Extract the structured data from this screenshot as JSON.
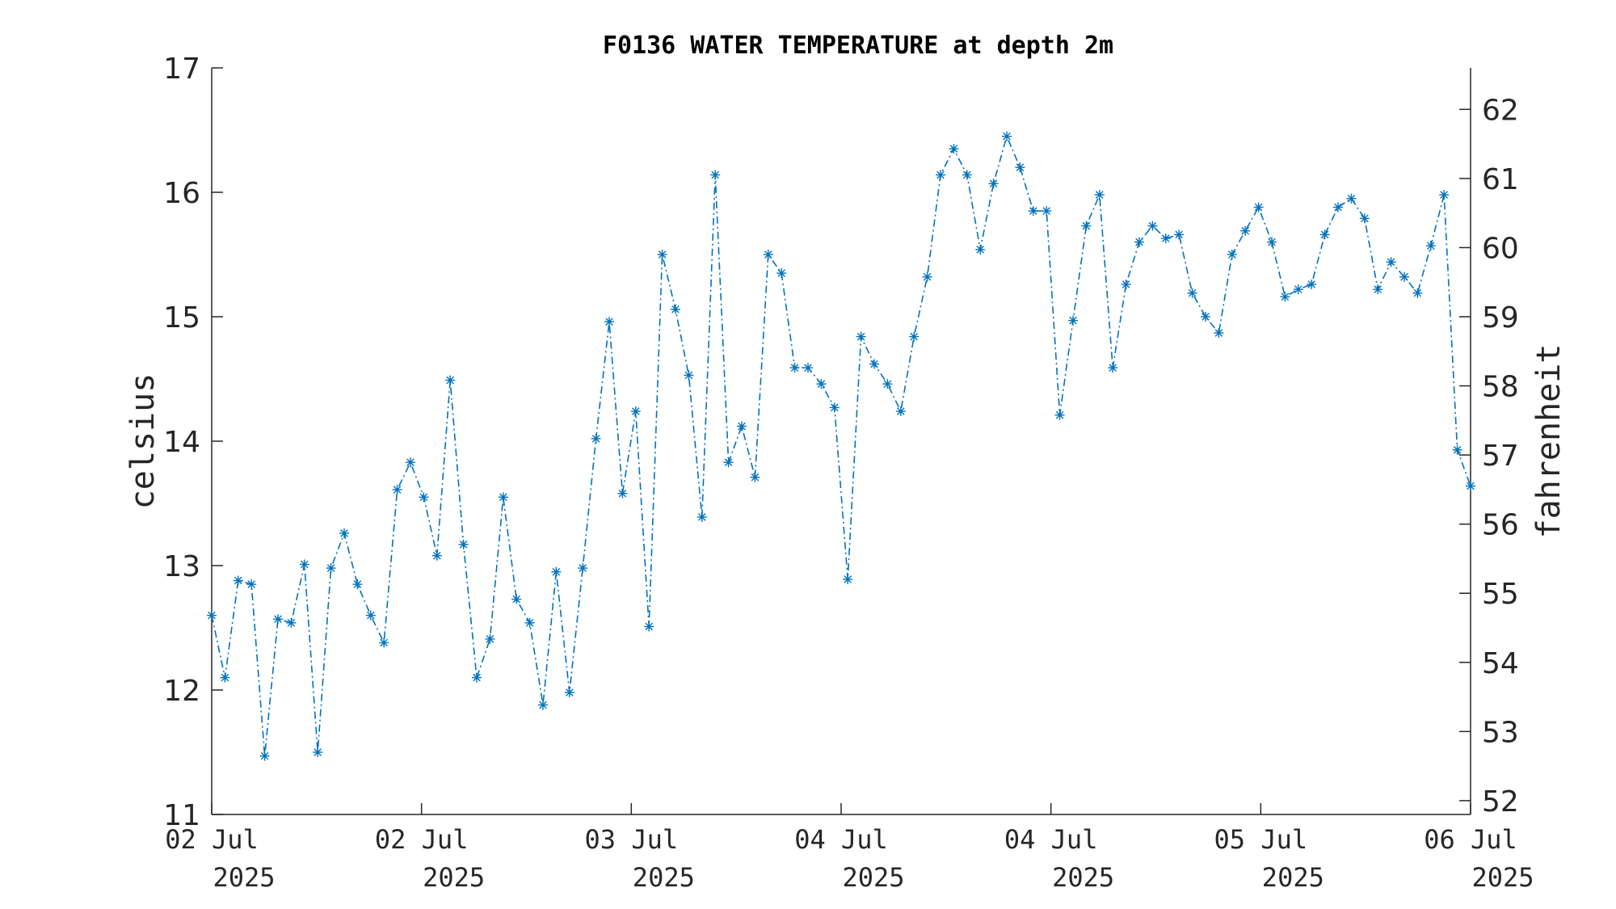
{
  "chart_data": {
    "type": "line",
    "title": "F0136 WATER TEMPERATURE at depth 2m",
    "ylabel": "celsius",
    "ylabel_right": "fahrenheit",
    "ylim": [
      11,
      17
    ],
    "yticks": [
      11,
      12,
      13,
      14,
      15,
      16,
      17
    ],
    "yticks_right": [
      52,
      53,
      54,
      55,
      56,
      57,
      58,
      59,
      60,
      61,
      62
    ],
    "xticks": [
      {
        "line1": "02 Jul",
        "line2": "2025"
      },
      {
        "line1": "02 Jul",
        "line2": "2025"
      },
      {
        "line1": "03 Jul",
        "line2": "2025"
      },
      {
        "line1": "04 Jul",
        "line2": "2025"
      },
      {
        "line1": "04 Jul",
        "line2": "2025"
      },
      {
        "line1": "05 Jul",
        "line2": "2025"
      },
      {
        "line1": "06 Jul",
        "line2": "2025"
      }
    ],
    "grid": false,
    "line_style": "dash-dot",
    "marker": "asterisk",
    "series_color": "#0072BD",
    "series": [
      {
        "values": [
          12.6,
          12.1,
          12.88,
          12.85,
          11.47,
          12.57,
          12.54,
          13.01,
          11.5,
          12.98,
          13.26,
          12.85,
          12.6,
          12.38,
          13.61,
          13.83,
          13.55,
          13.08,
          14.49,
          13.17,
          12.1,
          12.41,
          13.55,
          12.73,
          12.54,
          11.88,
          12.95,
          11.98,
          12.98,
          14.02,
          14.96,
          13.58,
          14.24,
          12.51,
          15.5,
          15.06,
          14.53,
          13.39,
          16.14,
          13.83,
          14.12,
          13.71,
          15.5,
          15.35,
          14.59,
          14.59,
          14.46,
          14.27,
          12.89,
          14.84,
          14.62,
          14.46,
          14.24,
          14.84,
          15.32,
          16.14,
          16.35,
          16.14,
          15.54,
          16.07,
          16.45,
          16.2,
          15.85,
          15.85,
          14.21,
          14.97,
          15.73,
          15.98,
          14.59,
          15.26,
          15.6,
          15.73,
          15.63,
          15.66,
          15.19,
          15.0,
          14.87,
          15.5,
          15.69,
          15.88,
          15.6,
          15.16,
          15.22,
          15.26,
          15.66,
          15.88,
          15.95,
          15.79,
          15.22,
          15.44,
          15.32,
          15.19,
          15.57,
          15.98,
          13.93,
          13.64
        ]
      }
    ]
  }
}
